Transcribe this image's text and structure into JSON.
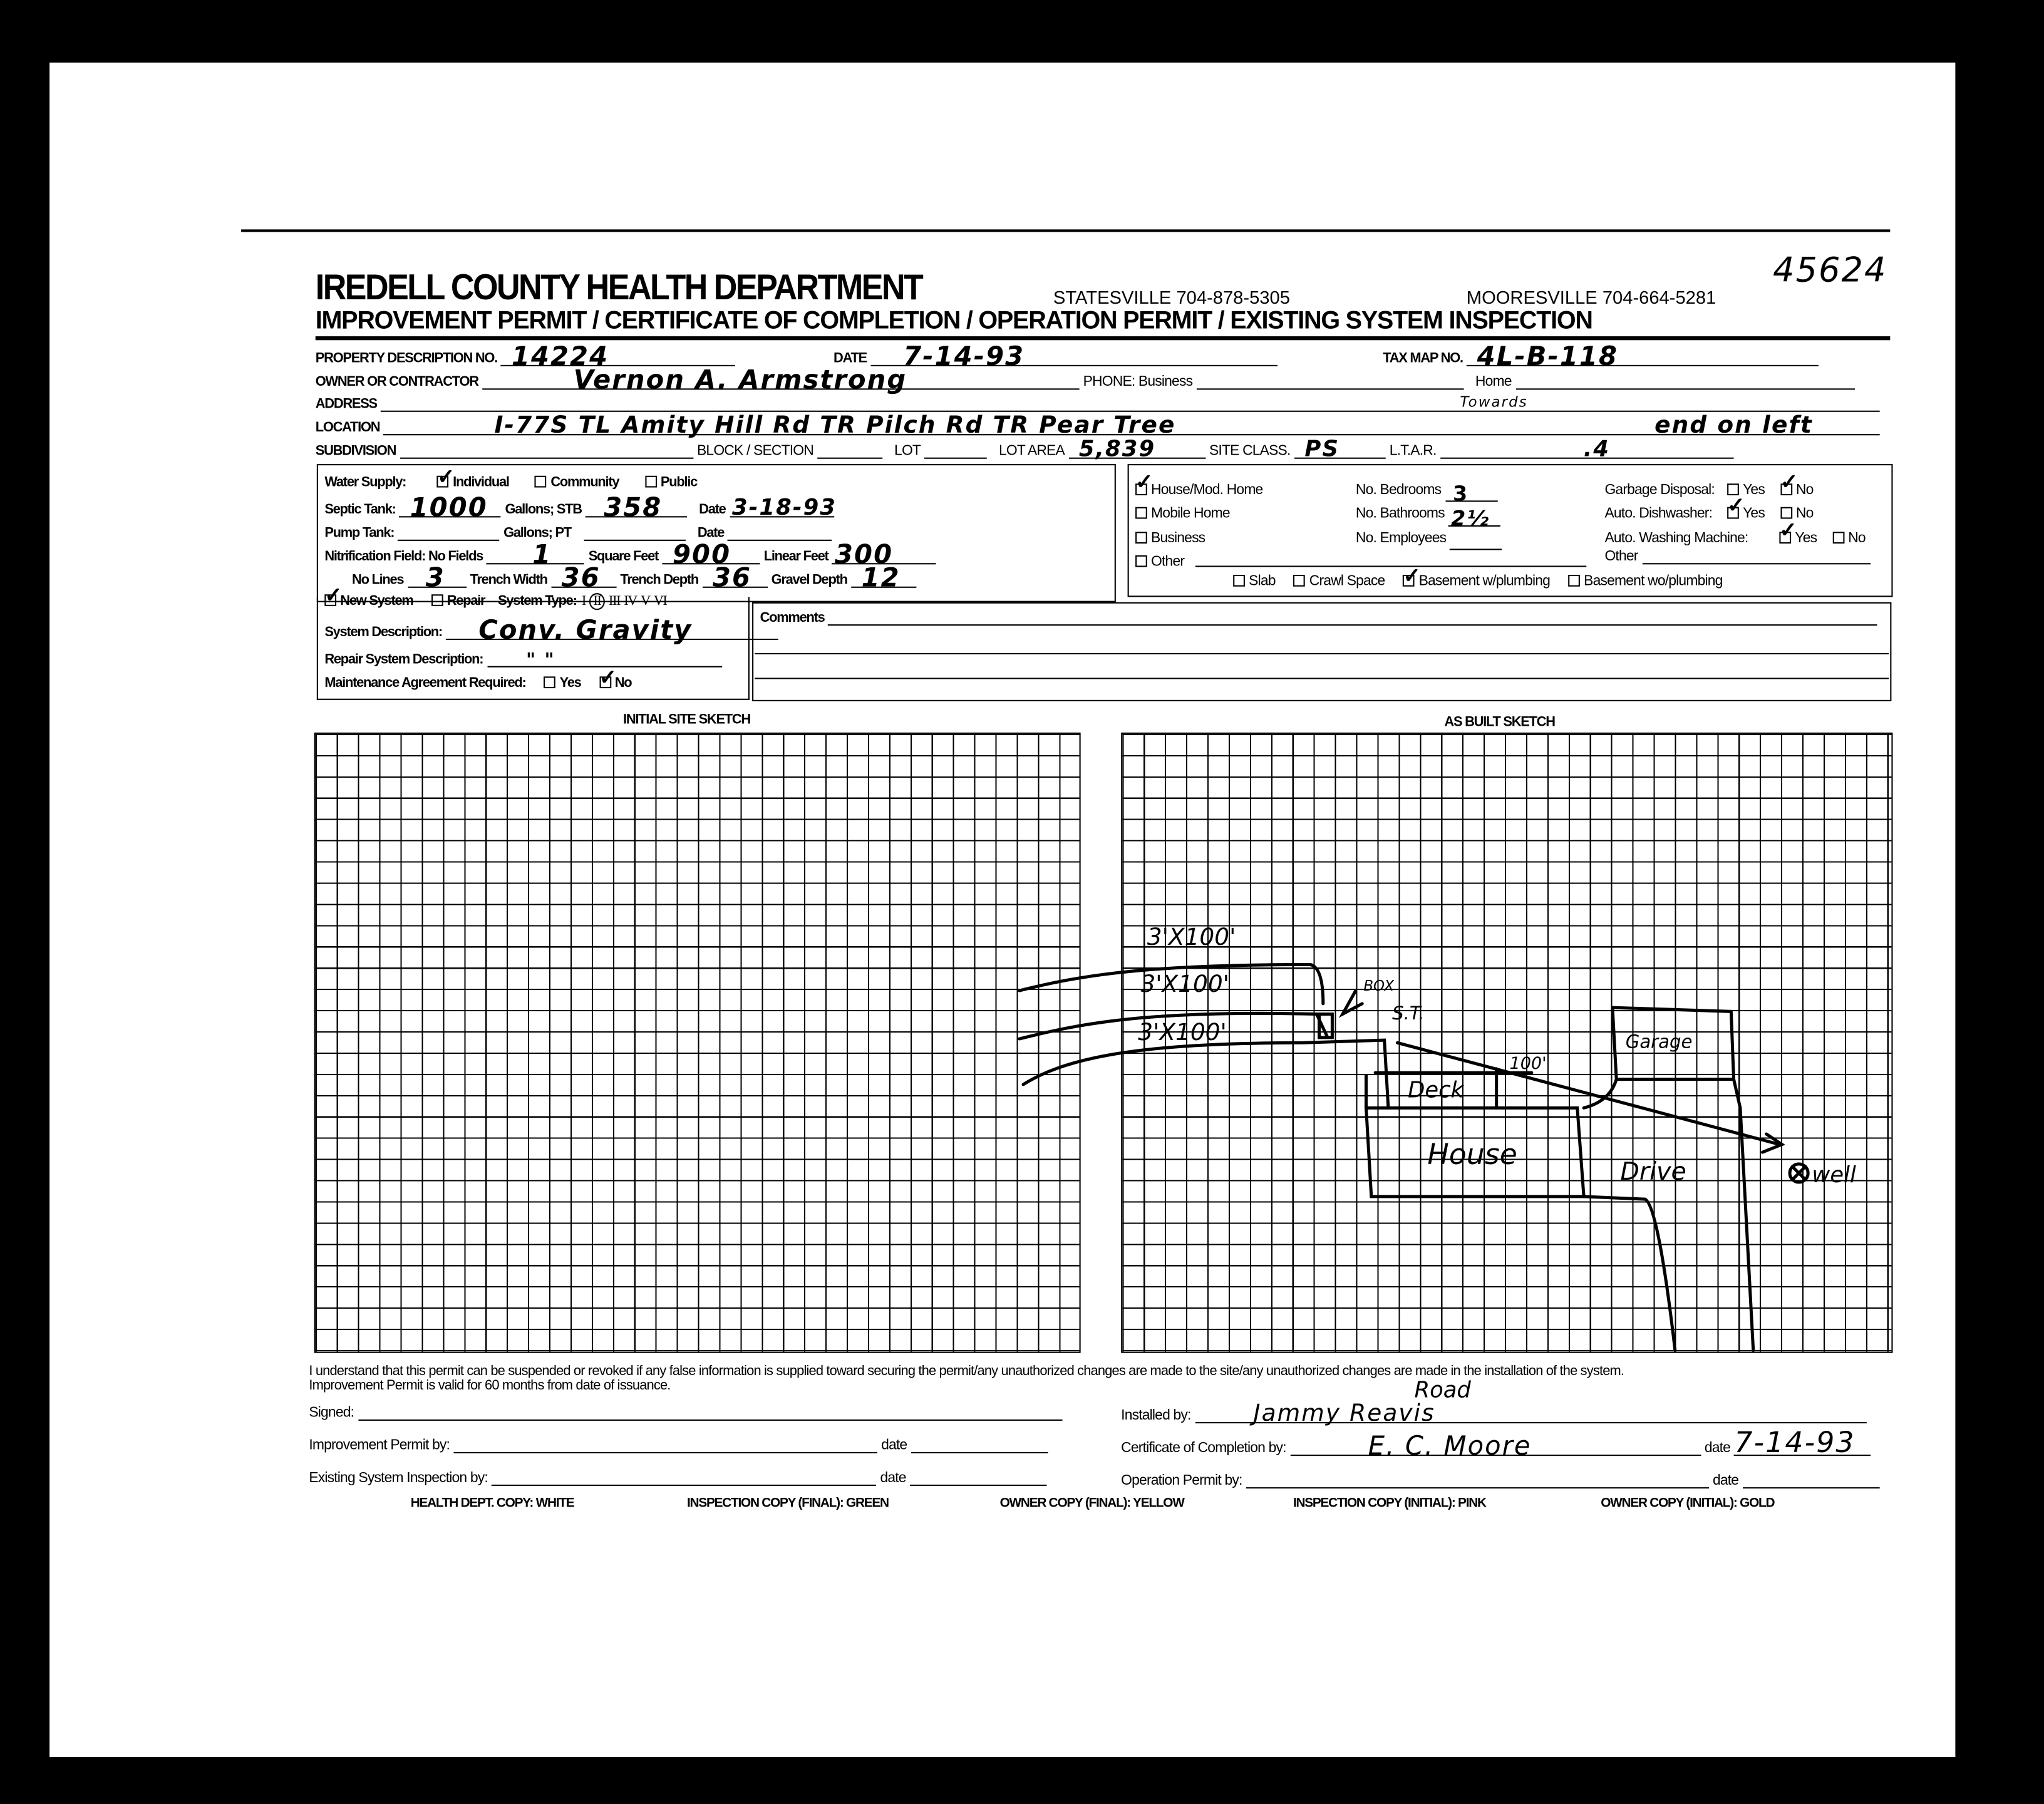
{
  "header": {
    "title": "IREDELL COUNTY HEALTH DEPARTMENT",
    "statesville": "STATESVILLE 704-878-5305",
    "mooresville": "MOORESVILLE 704-664-5281",
    "doc_number": "45624",
    "subtitle": "IMPROVEMENT PERMIT / CERTIFICATE OF COMPLETION / OPERATION PERMIT / EXISTING SYSTEM INSPECTION"
  },
  "property": {
    "desc_label": "PROPERTY DESCRIPTION NO.",
    "desc_value": "14224",
    "date_label": "DATE",
    "date_value": "7-14-93",
    "taxmap_label": "TAX MAP NO.",
    "taxmap_value": "4L-B-118",
    "owner_label": "OWNER OR CONTRACTOR",
    "owner_value": "Vernon A. Armstrong",
    "phone_business_label": "PHONE: Business",
    "phone_home_label": "Home",
    "address_label": "ADDRESS",
    "location_label": "LOCATION",
    "location_value": "I-77S TL Amity Hill Rd TR Pilch Rd TR Pear Tree",
    "location_note": "Towards",
    "location_value_end": "end on left",
    "subdivision_label": "SUBDIVISION",
    "block_label": "BLOCK / SECTION",
    "lot_label": "LOT",
    "lot_area_label": "LOT AREA",
    "lot_area_value": "5,839",
    "site_class_label": "SITE CLASS.",
    "site_class_value": "PS",
    "ltar_label": "L.T.A.R.",
    "ltar_value": ".4"
  },
  "system": {
    "water_supply_label": "Water Supply:",
    "water_options": [
      {
        "label": "Individual",
        "checked": true
      },
      {
        "label": "Community",
        "checked": false
      },
      {
        "label": "Public",
        "checked": false
      }
    ],
    "septic_label": "Septic Tank:",
    "septic_gallons": "1000",
    "gallons_label": "Gallons;",
    "stb_label": "STB",
    "stb_value": "358",
    "date_label": "Date",
    "septic_date": "3-18-93",
    "pump_label": "Pump Tank:",
    "pt_label": "PT",
    "nitrification_label": "Nitrification Field: No Fields",
    "no_fields": "1",
    "sqft_label": "Square Feet",
    "sqft_value": "900",
    "linear_label": "Linear Feet",
    "linear_value": "300",
    "lines_label": "No Lines",
    "lines_value": "3",
    "trench_width_label": "Trench Width",
    "trench_width_value": "36",
    "trench_depth_label": "Trench Depth",
    "trench_depth_value": "36",
    "gravel_label": "Gravel Depth",
    "gravel_value": "12",
    "new_system_label": "New System",
    "new_system_checked": true,
    "repair_label": "Repair",
    "repair_checked": false,
    "system_type_label": "System Type:",
    "system_types": [
      "I",
      "II",
      "III",
      "IV",
      "V",
      "VI"
    ],
    "system_type_selected": "II",
    "description_label": "System Description:",
    "description_value": "Conv. Gravity",
    "repair_desc_label": "Repair System Description:",
    "repair_desc_value": "\"     \"",
    "maintenance_label": "Maintenance Agreement Required:",
    "maint_yes": "Yes",
    "maint_no": "No",
    "maintenance_required": false
  },
  "building": {
    "types": [
      {
        "label": "House/Mod. Home",
        "checked": true
      },
      {
        "label": "Mobile Home",
        "checked": false
      },
      {
        "label": "Business",
        "checked": false
      },
      {
        "label": "Other",
        "checked": false
      }
    ],
    "bedrooms_label": "No. Bedrooms",
    "bedrooms_value": "3",
    "bathrooms_label": "No. Bathrooms",
    "bathrooms_value": "2½",
    "employees_label": "No. Employees",
    "garbage_label": "Garbage Disposal:",
    "garbage": "No",
    "dishwasher_label": "Auto. Dishwasher:",
    "dishwasher": "Yes",
    "washer_label": "Auto. Washing Machine:",
    "washer": "Yes",
    "yes": "Yes",
    "no": "No",
    "other_label": "Other",
    "foundations": [
      {
        "label": "Slab",
        "checked": false
      },
      {
        "label": "Crawl Space",
        "checked": false
      },
      {
        "label": "Basement w/plumbing",
        "checked": true
      },
      {
        "label": "Basement wo/plumbing",
        "checked": false
      }
    ]
  },
  "comments_label": "Comments",
  "sketch": {
    "initial_label": "INITIAL SITE SKETCH",
    "as_built_label": "AS BUILT SKETCH",
    "labels": {
      "line1": "3'X100'",
      "line2": "3'X100'",
      "line3": "3'X100'",
      "box": "BOX",
      "st": "S.T.",
      "distance": "100'",
      "deck": "Deck",
      "house": "House",
      "garage": "Garage",
      "drive": "Drive",
      "well": "well",
      "road": "Road"
    }
  },
  "footer": {
    "disclaimer1": "I understand that this permit can be suspended or revoked if any false information is supplied toward securing the permit/any unauthorized changes are made to the site/any unauthorized changes are made in the installation of the system.",
    "disclaimer2": "Improvement Permit is valid for 60 months from date of issuance.",
    "signed_label": "Signed:",
    "improvement_label": "Improvement Permit by:",
    "existing_label": "Existing System Inspection by:",
    "date_label": "date",
    "installed_label": "Installed by:",
    "installed_value": "Jammy Reavis",
    "certificate_label": "Certificate of Completion by:",
    "certificate_value": "E. C. Moore",
    "certificate_date": "7-14-93",
    "operation_label": "Operation Permit by:",
    "copies": [
      "HEALTH DEPT. COPY: WHITE",
      "INSPECTION COPY (FINAL): GREEN",
      "OWNER COPY (FINAL): YELLOW",
      "INSPECTION COPY (INITIAL): PINK",
      "OWNER COPY (INITIAL): GOLD"
    ]
  }
}
